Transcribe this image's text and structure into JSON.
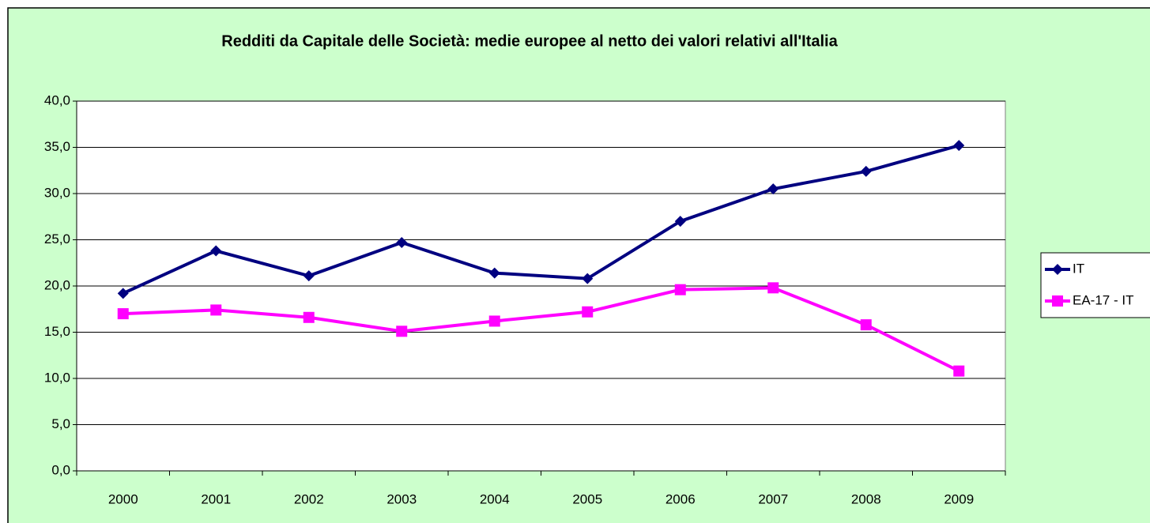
{
  "chart_data": {
    "type": "line",
    "title": "Redditi da Capitale delle Società: medie europee al netto dei valori relativi all'Italia",
    "categories": [
      "2000",
      "2001",
      "2002",
      "2003",
      "2004",
      "2005",
      "2006",
      "2007",
      "2008",
      "2009"
    ],
    "series": [
      {
        "name": "IT",
        "color": "#000080",
        "marker": "diamond",
        "values": [
          19.2,
          23.8,
          21.1,
          24.7,
          21.4,
          20.8,
          27.0,
          30.5,
          32.4,
          35.2
        ]
      },
      {
        "name": "EA-17 - IT",
        "color": "#ff00ff",
        "marker": "square",
        "values": [
          17.0,
          17.4,
          16.6,
          15.1,
          16.2,
          17.2,
          19.6,
          19.8,
          15.8,
          10.8
        ]
      }
    ],
    "ylim": [
      0,
      40
    ],
    "yticks": [
      {
        "value": 0,
        "label": "0,0"
      },
      {
        "value": 5,
        "label": "5,0"
      },
      {
        "value": 10,
        "label": "10,0"
      },
      {
        "value": 15,
        "label": "15,0"
      },
      {
        "value": 20,
        "label": "20,0"
      },
      {
        "value": 25,
        "label": "25,0"
      },
      {
        "value": 30,
        "label": "30,0"
      },
      {
        "value": 35,
        "label": "35,0"
      },
      {
        "value": 40,
        "label": "40,0"
      }
    ],
    "grid": true,
    "legend": "right"
  }
}
